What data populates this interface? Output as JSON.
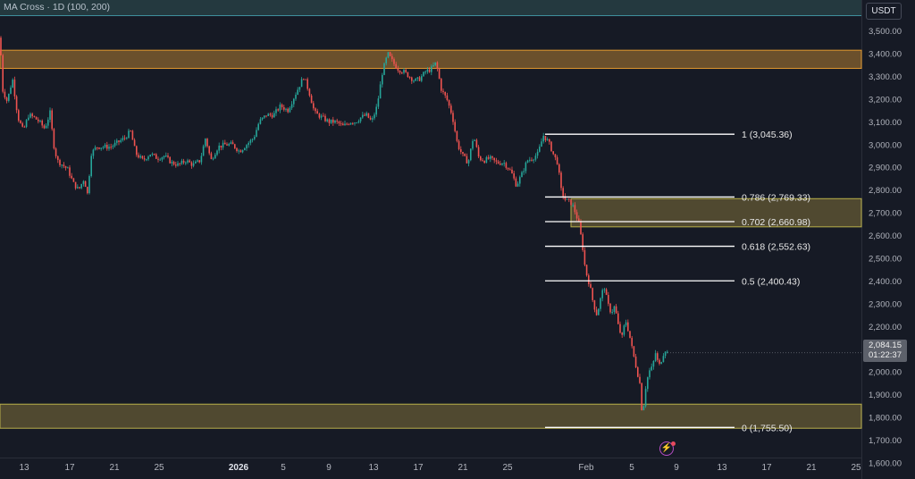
{
  "header": {
    "indicator": "MA Cross · 1D (100, 200)"
  },
  "currency": "USDT",
  "price_badge": {
    "price": "2,084.15",
    "countdown": "01:22:37"
  },
  "colors": {
    "background": "#161a25",
    "up_candle": "#26a69a",
    "down_candle": "#ef5350",
    "zone_orange": "#7a5a2e",
    "zone_olive": "#5a5232",
    "fib_line": "#ffffff",
    "header_bar": "#24393f"
  },
  "chart_data": {
    "type": "candlestick",
    "y_axis": {
      "ticks": [
        "3,500.00",
        "3,400.00",
        "3,300.00",
        "3,200.00",
        "3,100.00",
        "3,000.00",
        "2,900.00",
        "2,800.00",
        "2,700.00",
        "2,600.00",
        "2,500.00",
        "2,400.00",
        "2,300.00",
        "2,200.00",
        "2,100.00",
        "2,000.00",
        "1,900.00",
        "1,800.00",
        "1,700.00",
        "1,600.00"
      ],
      "range": [
        1580,
        3560
      ]
    },
    "x_axis": {
      "ticks": [
        "13",
        "17",
        "21",
        "25",
        "2026",
        "5",
        "9",
        "13",
        "17",
        "21",
        "25",
        "Feb",
        "5",
        "9",
        "13",
        "17",
        "21",
        "25"
      ]
    },
    "close_path": [
      [
        0,
        3470
      ],
      [
        3,
        3240
      ],
      [
        8,
        3190
      ],
      [
        14,
        3290
      ],
      [
        20,
        3120
      ],
      [
        26,
        3060
      ],
      [
        32,
        3130
      ],
      [
        38,
        3120
      ],
      [
        44,
        3100
      ],
      [
        50,
        3070
      ],
      [
        56,
        3140
      ],
      [
        60,
        3000
      ],
      [
        64,
        2930
      ],
      [
        70,
        2910
      ],
      [
        76,
        2890
      ],
      [
        82,
        2830
      ],
      [
        88,
        2800
      ],
      [
        94,
        2850
      ],
      [
        98,
        2780
      ],
      [
        102,
        2960
      ],
      [
        108,
        2990
      ],
      [
        116,
        2990
      ],
      [
        124,
        2990
      ],
      [
        132,
        3010
      ],
      [
        140,
        3030
      ],
      [
        146,
        3060
      ],
      [
        152,
        2960
      ],
      [
        160,
        2930
      ],
      [
        168,
        2960
      ],
      [
        176,
        2940
      ],
      [
        184,
        2950
      ],
      [
        192,
        2920
      ],
      [
        200,
        2910
      ],
      [
        208,
        2930
      ],
      [
        216,
        2910
      ],
      [
        224,
        2930
      ],
      [
        230,
        3030
      ],
      [
        236,
        2930
      ],
      [
        244,
        2990
      ],
      [
        252,
        3000
      ],
      [
        260,
        3000
      ],
      [
        268,
        2970
      ],
      [
        276,
        3000
      ],
      [
        284,
        3030
      ],
      [
        290,
        3100
      ],
      [
        298,
        3130
      ],
      [
        306,
        3130
      ],
      [
        314,
        3170
      ],
      [
        322,
        3150
      ],
      [
        328,
        3200
      ],
      [
        334,
        3250
      ],
      [
        340,
        3300
      ],
      [
        346,
        3230
      ],
      [
        352,
        3140
      ],
      [
        360,
        3120
      ],
      [
        368,
        3100
      ],
      [
        376,
        3100
      ],
      [
        384,
        3080
      ],
      [
        392,
        3100
      ],
      [
        398,
        3100
      ],
      [
        404,
        3120
      ],
      [
        410,
        3130
      ],
      [
        416,
        3100
      ],
      [
        422,
        3170
      ],
      [
        428,
        3320
      ],
      [
        434,
        3400
      ],
      [
        440,
        3360
      ],
      [
        446,
        3330
      ],
      [
        452,
        3320
      ],
      [
        458,
        3300
      ],
      [
        464,
        3280
      ],
      [
        470,
        3290
      ],
      [
        476,
        3320
      ],
      [
        482,
        3330
      ],
      [
        488,
        3360
      ],
      [
        494,
        3240
      ],
      [
        500,
        3200
      ],
      [
        506,
        3130
      ],
      [
        512,
        3000
      ],
      [
        518,
        2950
      ],
      [
        524,
        2920
      ],
      [
        530,
        3040
      ],
      [
        536,
        2940
      ],
      [
        542,
        2930
      ],
      [
        548,
        2940
      ],
      [
        556,
        2920
      ],
      [
        564,
        2920
      ],
      [
        572,
        2880
      ],
      [
        578,
        2820
      ],
      [
        584,
        2870
      ],
      [
        590,
        2930
      ],
      [
        596,
        2940
      ],
      [
        602,
        2960
      ],
      [
        608,
        3040
      ],
      [
        614,
        3010
      ],
      [
        620,
        2950
      ],
      [
        624,
        2920
      ],
      [
        628,
        2800
      ],
      [
        632,
        2760
      ],
      [
        636,
        2750
      ],
      [
        640,
        2740
      ],
      [
        644,
        2700
      ],
      [
        648,
        2650
      ],
      [
        652,
        2550
      ],
      [
        655,
        2450
      ],
      [
        660,
        2380
      ],
      [
        664,
        2300
      ],
      [
        668,
        2250
      ],
      [
        672,
        2320
      ],
      [
        676,
        2380
      ],
      [
        680,
        2300
      ],
      [
        684,
        2260
      ],
      [
        688,
        2290
      ],
      [
        692,
        2200
      ],
      [
        696,
        2150
      ],
      [
        700,
        2230
      ],
      [
        704,
        2170
      ],
      [
        708,
        2090
      ],
      [
        712,
        2020
      ],
      [
        716,
        1950
      ],
      [
        719,
        1800
      ],
      [
        722,
        1920
      ],
      [
        726,
        2000
      ],
      [
        730,
        2020
      ],
      [
        734,
        2090
      ],
      [
        737,
        2020
      ],
      [
        740,
        2050
      ],
      [
        744,
        2100
      ],
      [
        747,
        2084
      ]
    ],
    "zones": [
      {
        "y_top": 3415,
        "y_bottom": 3335,
        "color": "orange"
      },
      {
        "y_top": 2762,
        "y_bottom": 2638,
        "color": "olive"
      },
      {
        "y_top": 1858,
        "y_bottom": 1752,
        "color": "olive"
      }
    ],
    "fib_levels": [
      {
        "ratio": "1",
        "label": "1 (3,045.36)",
        "price": 3045.36
      },
      {
        "ratio": "0.786",
        "label": "0.786 (2,769.33)",
        "price": 2769.33
      },
      {
        "ratio": "0.702",
        "label": "0.702 (2,660.98)",
        "price": 2660.98
      },
      {
        "ratio": "0.618",
        "label": "0.618 (2,552.63)",
        "price": 2552.63
      },
      {
        "ratio": "0.5",
        "label": "0.5 (2,400.43)",
        "price": 2400.43
      },
      {
        "ratio": "0",
        "label": "0 (1,755.50)",
        "price": 1755.5
      }
    ],
    "last_price": 2084.15
  }
}
